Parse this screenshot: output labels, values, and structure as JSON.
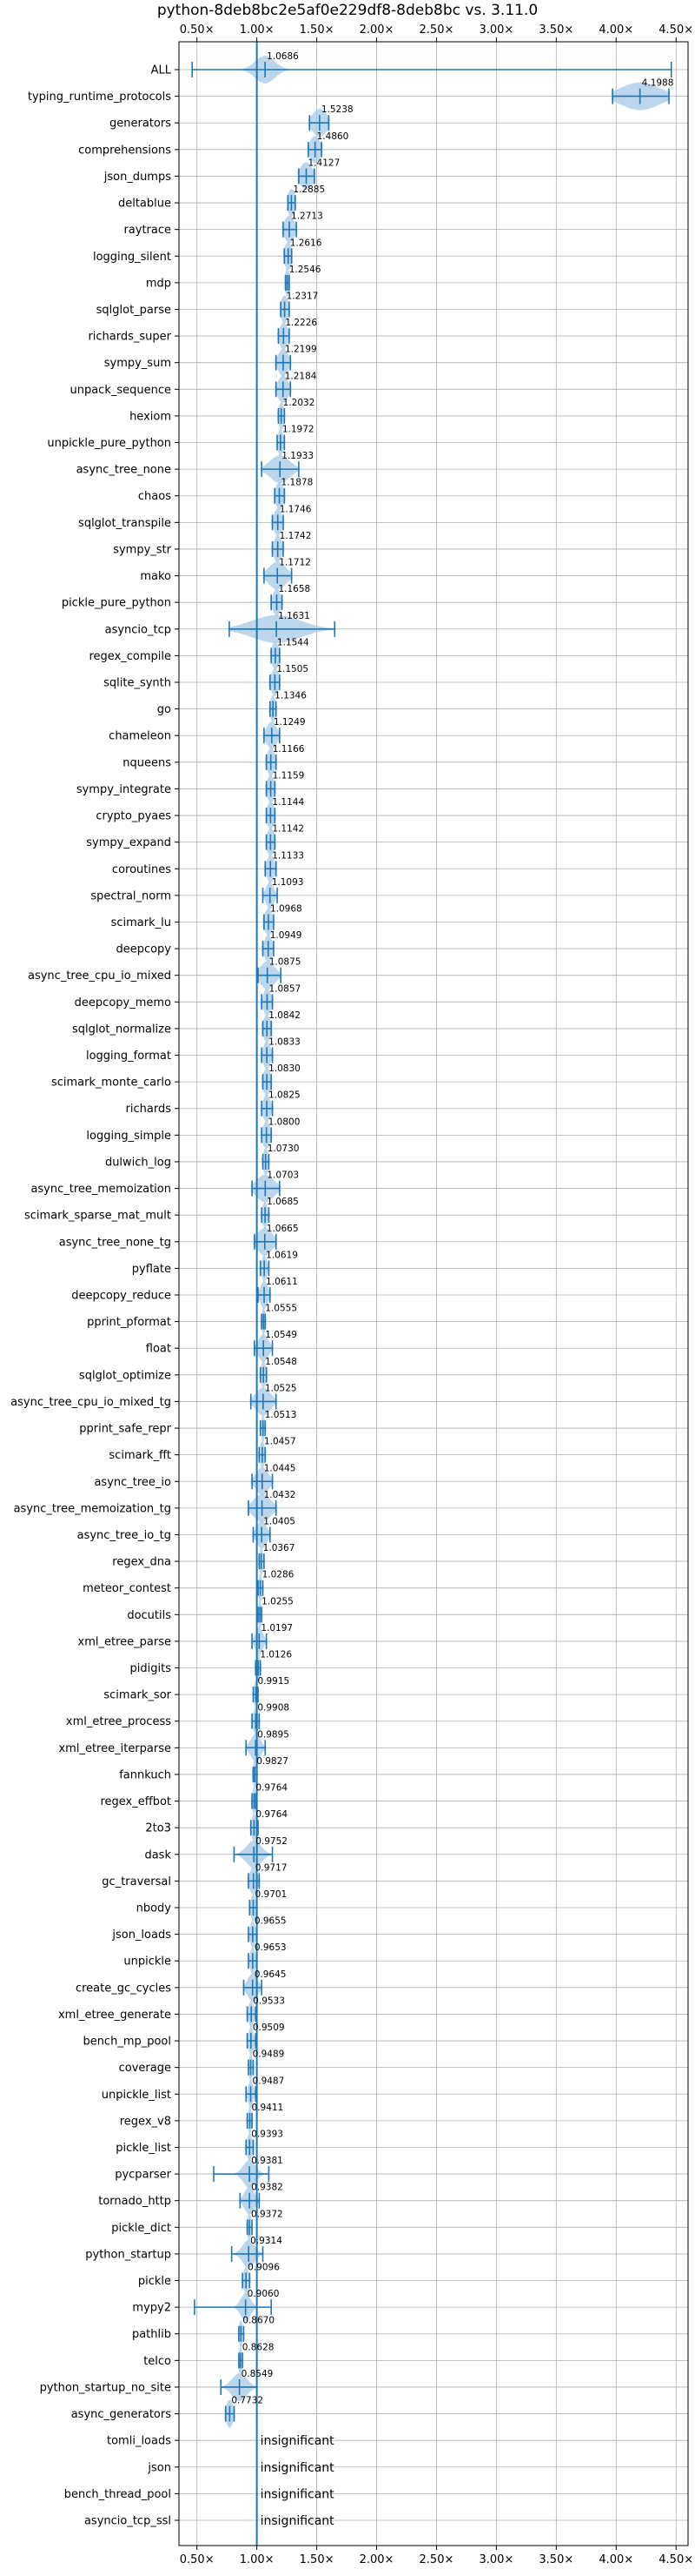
{
  "chart_data": {
    "type": "violin",
    "title": "python-8deb8bc2e5af0e229df8-8deb8bc vs. 3.11.0",
    "xlabel": "",
    "ylabel": "",
    "xlim": [
      0.35,
      4.6
    ],
    "x_ticks": [
      0.5,
      1.0,
      1.5,
      2.0,
      2.5,
      3.0,
      3.5,
      4.0,
      4.5
    ],
    "x_tick_labels": [
      "0.50×",
      "1.00×",
      "1.50×",
      "2.00×",
      "2.50×",
      "3.00×",
      "3.50×",
      "4.00×",
      "4.50×"
    ],
    "reference_line": 1.0,
    "grid": true,
    "colors": {
      "violin": "#a6c8e6",
      "marker": "#1f77b4",
      "reference": "#1f77b4",
      "grid": "#b0b0b0"
    },
    "benchmarks": [
      {
        "name": "ALL",
        "median": 1.0686,
        "label": "1.0686",
        "min": 0.46,
        "max": 4.46,
        "spread": 0.08
      },
      {
        "name": "typing_runtime_protocols",
        "median": 4.1988,
        "label": "4.1988",
        "min": 3.97,
        "max": 4.44,
        "spread": 0.16
      },
      {
        "name": "generators",
        "median": 1.5238,
        "label": "1.5238",
        "min": 1.44,
        "max": 1.6,
        "spread": 0.06
      },
      {
        "name": "comprehensions",
        "median": 1.486,
        "label": "1.4860",
        "min": 1.43,
        "max": 1.54,
        "spread": 0.04
      },
      {
        "name": "json_dumps",
        "median": 1.4127,
        "label": "1.4127",
        "min": 1.35,
        "max": 1.48,
        "spread": 0.05
      },
      {
        "name": "deltablue",
        "median": 1.2885,
        "label": "1.2885",
        "min": 1.26,
        "max": 1.32,
        "spread": 0.03
      },
      {
        "name": "raytrace",
        "median": 1.2713,
        "label": "1.2713",
        "min": 1.22,
        "max": 1.33,
        "spread": 0.04
      },
      {
        "name": "logging_silent",
        "median": 1.2616,
        "label": "1.2616",
        "min": 1.23,
        "max": 1.29,
        "spread": 0.03
      },
      {
        "name": "mdp",
        "median": 1.2546,
        "label": "1.2546",
        "min": 1.24,
        "max": 1.27,
        "spread": 0.02
      },
      {
        "name": "sqlglot_parse",
        "median": 1.2317,
        "label": "1.2317",
        "min": 1.2,
        "max": 1.27,
        "spread": 0.03
      },
      {
        "name": "richards_super",
        "median": 1.2226,
        "label": "1.2226",
        "min": 1.18,
        "max": 1.27,
        "spread": 0.03
      },
      {
        "name": "sympy_sum",
        "median": 1.2199,
        "label": "1.2199",
        "min": 1.16,
        "max": 1.28,
        "spread": 0.04
      },
      {
        "name": "unpack_sequence",
        "median": 1.2184,
        "label": "1.2184",
        "min": 1.16,
        "max": 1.28,
        "spread": 0.04
      },
      {
        "name": "hexiom",
        "median": 1.2032,
        "label": "1.2032",
        "min": 1.18,
        "max": 1.23,
        "spread": 0.02
      },
      {
        "name": "unpickle_pure_python",
        "median": 1.1972,
        "label": "1.1972",
        "min": 1.17,
        "max": 1.23,
        "spread": 0.02
      },
      {
        "name": "async_tree_none",
        "median": 1.1933,
        "label": "1.1933",
        "min": 1.04,
        "max": 1.35,
        "spread": 0.08
      },
      {
        "name": "chaos",
        "median": 1.1878,
        "label": "1.1878",
        "min": 1.15,
        "max": 1.23,
        "spread": 0.03
      },
      {
        "name": "sqlglot_transpile",
        "median": 1.1746,
        "label": "1.1746",
        "min": 1.13,
        "max": 1.22,
        "spread": 0.03
      },
      {
        "name": "sympy_str",
        "median": 1.1742,
        "label": "1.1742",
        "min": 1.13,
        "max": 1.22,
        "spread": 0.03
      },
      {
        "name": "mako",
        "median": 1.1712,
        "label": "1.1712",
        "min": 1.06,
        "max": 1.29,
        "spread": 0.07
      },
      {
        "name": "pickle_pure_python",
        "median": 1.1658,
        "label": "1.1658",
        "min": 1.12,
        "max": 1.21,
        "spread": 0.03
      },
      {
        "name": "asyncio_tcp",
        "median": 1.1631,
        "label": "1.1631",
        "min": 0.77,
        "max": 1.65,
        "spread": 0.2
      },
      {
        "name": "regex_compile",
        "median": 1.1544,
        "label": "1.1544",
        "min": 1.12,
        "max": 1.19,
        "spread": 0.03
      },
      {
        "name": "sqlite_synth",
        "median": 1.1505,
        "label": "1.1505",
        "min": 1.11,
        "max": 1.19,
        "spread": 0.03
      },
      {
        "name": "go",
        "median": 1.1346,
        "label": "1.1346",
        "min": 1.11,
        "max": 1.16,
        "spread": 0.02
      },
      {
        "name": "chameleon",
        "median": 1.1249,
        "label": "1.1249",
        "min": 1.06,
        "max": 1.19,
        "spread": 0.04
      },
      {
        "name": "nqueens",
        "median": 1.1166,
        "label": "1.1166",
        "min": 1.08,
        "max": 1.16,
        "spread": 0.03
      },
      {
        "name": "sympy_integrate",
        "median": 1.1159,
        "label": "1.1159",
        "min": 1.08,
        "max": 1.15,
        "spread": 0.03
      },
      {
        "name": "crypto_pyaes",
        "median": 1.1144,
        "label": "1.1144",
        "min": 1.08,
        "max": 1.15,
        "spread": 0.03
      },
      {
        "name": "sympy_expand",
        "median": 1.1142,
        "label": "1.1142",
        "min": 1.08,
        "max": 1.15,
        "spread": 0.03
      },
      {
        "name": "coroutines",
        "median": 1.1133,
        "label": "1.1133",
        "min": 1.07,
        "max": 1.16,
        "spread": 0.03
      },
      {
        "name": "spectral_norm",
        "median": 1.1093,
        "label": "1.1093",
        "min": 1.05,
        "max": 1.17,
        "spread": 0.03
      },
      {
        "name": "scimark_lu",
        "median": 1.0968,
        "label": "1.0968",
        "min": 1.06,
        "max": 1.14,
        "spread": 0.03
      },
      {
        "name": "deepcopy",
        "median": 1.0949,
        "label": "1.0949",
        "min": 1.05,
        "max": 1.14,
        "spread": 0.03
      },
      {
        "name": "async_tree_cpu_io_mixed",
        "median": 1.0875,
        "label": "1.0875",
        "min": 1.01,
        "max": 1.2,
        "spread": 0.06
      },
      {
        "name": "deepcopy_memo",
        "median": 1.0857,
        "label": "1.0857",
        "min": 1.04,
        "max": 1.13,
        "spread": 0.03
      },
      {
        "name": "sqlglot_normalize",
        "median": 1.0842,
        "label": "1.0842",
        "min": 1.05,
        "max": 1.12,
        "spread": 0.03
      },
      {
        "name": "logging_format",
        "median": 1.0833,
        "label": "1.0833",
        "min": 1.04,
        "max": 1.13,
        "spread": 0.03
      },
      {
        "name": "scimark_monte_carlo",
        "median": 1.083,
        "label": "1.0830",
        "min": 1.05,
        "max": 1.12,
        "spread": 0.03
      },
      {
        "name": "richards",
        "median": 1.0825,
        "label": "1.0825",
        "min": 1.04,
        "max": 1.13,
        "spread": 0.03
      },
      {
        "name": "logging_simple",
        "median": 1.08,
        "label": "1.0800",
        "min": 1.04,
        "max": 1.12,
        "spread": 0.03
      },
      {
        "name": "dulwich_log",
        "median": 1.073,
        "label": "1.0730",
        "min": 1.05,
        "max": 1.1,
        "spread": 0.02
      },
      {
        "name": "async_tree_memoization",
        "median": 1.0703,
        "label": "1.0703",
        "min": 0.96,
        "max": 1.19,
        "spread": 0.07
      },
      {
        "name": "scimark_sparse_mat_mult",
        "median": 1.0685,
        "label": "1.0685",
        "min": 1.04,
        "max": 1.1,
        "spread": 0.02
      },
      {
        "name": "async_tree_none_tg",
        "median": 1.0665,
        "label": "1.0665",
        "min": 0.98,
        "max": 1.16,
        "spread": 0.06
      },
      {
        "name": "pyflate",
        "median": 1.0619,
        "label": "1.0619",
        "min": 1.03,
        "max": 1.1,
        "spread": 0.02
      },
      {
        "name": "deepcopy_reduce",
        "median": 1.0611,
        "label": "1.0611",
        "min": 1.01,
        "max": 1.11,
        "spread": 0.03
      },
      {
        "name": "pprint_pformat",
        "median": 1.0555,
        "label": "1.0555",
        "min": 1.04,
        "max": 1.07,
        "spread": 0.015
      },
      {
        "name": "float",
        "median": 1.0549,
        "label": "1.0549",
        "min": 0.98,
        "max": 1.13,
        "spread": 0.04
      },
      {
        "name": "sqlglot_optimize",
        "median": 1.0548,
        "label": "1.0548",
        "min": 1.03,
        "max": 1.08,
        "spread": 0.02
      },
      {
        "name": "async_tree_cpu_io_mixed_tg",
        "median": 1.0525,
        "label": "1.0525",
        "min": 0.95,
        "max": 1.16,
        "spread": 0.06
      },
      {
        "name": "pprint_safe_repr",
        "median": 1.0513,
        "label": "1.0513",
        "min": 1.03,
        "max": 1.07,
        "spread": 0.015
      },
      {
        "name": "scimark_fft",
        "median": 1.0457,
        "label": "1.0457",
        "min": 1.02,
        "max": 1.07,
        "spread": 0.02
      },
      {
        "name": "async_tree_io",
        "median": 1.0445,
        "label": "1.0445",
        "min": 0.96,
        "max": 1.13,
        "spread": 0.05
      },
      {
        "name": "async_tree_memoization_tg",
        "median": 1.0432,
        "label": "1.0432",
        "min": 0.93,
        "max": 1.16,
        "spread": 0.07
      },
      {
        "name": "async_tree_io_tg",
        "median": 1.0405,
        "label": "1.0405",
        "min": 0.97,
        "max": 1.11,
        "spread": 0.04
      },
      {
        "name": "regex_dna",
        "median": 1.0367,
        "label": "1.0367",
        "min": 1.02,
        "max": 1.06,
        "spread": 0.015
      },
      {
        "name": "meteor_contest",
        "median": 1.0286,
        "label": "1.0286",
        "min": 1.01,
        "max": 1.05,
        "spread": 0.015
      },
      {
        "name": "docutils",
        "median": 1.0255,
        "label": "1.0255",
        "min": 1.01,
        "max": 1.04,
        "spread": 0.015
      },
      {
        "name": "xml_etree_parse",
        "median": 1.0197,
        "label": "1.0197",
        "min": 0.96,
        "max": 1.08,
        "spread": 0.03
      },
      {
        "name": "pidigits",
        "median": 1.0126,
        "label": "1.0126",
        "min": 0.99,
        "max": 1.03,
        "spread": 0.015
      },
      {
        "name": "scimark_sor",
        "median": 0.9915,
        "label": "0.9915",
        "min": 0.97,
        "max": 1.01,
        "spread": 0.015
      },
      {
        "name": "xml_etree_process",
        "median": 0.9908,
        "label": "0.9908",
        "min": 0.96,
        "max": 1.02,
        "spread": 0.02
      },
      {
        "name": "xml_etree_iterparse",
        "median": 0.9895,
        "label": "0.9895",
        "min": 0.91,
        "max": 1.07,
        "spread": 0.04
      },
      {
        "name": "fannkuch",
        "median": 0.9827,
        "label": "0.9827",
        "min": 0.97,
        "max": 1.0,
        "spread": 0.015
      },
      {
        "name": "regex_effbot",
        "median": 0.9764,
        "label": "0.9764",
        "min": 0.96,
        "max": 0.99,
        "spread": 0.015
      },
      {
        "name": "2to3",
        "median": 0.9764,
        "label": "0.9764",
        "min": 0.95,
        "max": 1.01,
        "spread": 0.02
      },
      {
        "name": "dask",
        "median": 0.9752,
        "label": "0.9752",
        "min": 0.81,
        "max": 1.13,
        "spread": 0.06
      },
      {
        "name": "gc_traversal",
        "median": 0.9717,
        "label": "0.9717",
        "min": 0.93,
        "max": 1.02,
        "spread": 0.03
      },
      {
        "name": "nbody",
        "median": 0.9701,
        "label": "0.9701",
        "min": 0.94,
        "max": 1.0,
        "spread": 0.02
      },
      {
        "name": "json_loads",
        "median": 0.9655,
        "label": "0.9655",
        "min": 0.93,
        "max": 1.0,
        "spread": 0.02
      },
      {
        "name": "unpickle",
        "median": 0.9653,
        "label": "0.9653",
        "min": 0.93,
        "max": 1.0,
        "spread": 0.02
      },
      {
        "name": "create_gc_cycles",
        "median": 0.9645,
        "label": "0.9645",
        "min": 0.89,
        "max": 1.04,
        "spread": 0.04
      },
      {
        "name": "xml_etree_generate",
        "median": 0.9533,
        "label": "0.9533",
        "min": 0.92,
        "max": 0.99,
        "spread": 0.02
      },
      {
        "name": "bench_mp_pool",
        "median": 0.9509,
        "label": "0.9509",
        "min": 0.92,
        "max": 0.99,
        "spread": 0.02
      },
      {
        "name": "coverage",
        "median": 0.9489,
        "label": "0.9489",
        "min": 0.93,
        "max": 0.97,
        "spread": 0.015
      },
      {
        "name": "unpickle_list",
        "median": 0.9487,
        "label": "0.9487",
        "min": 0.91,
        "max": 0.99,
        "spread": 0.02
      },
      {
        "name": "regex_v8",
        "median": 0.9411,
        "label": "0.9411",
        "min": 0.92,
        "max": 0.96,
        "spread": 0.015
      },
      {
        "name": "pickle_list",
        "median": 0.9393,
        "label": "0.9393",
        "min": 0.91,
        "max": 0.97,
        "spread": 0.02
      },
      {
        "name": "pycparser",
        "median": 0.9381,
        "label": "0.9381",
        "min": 0.64,
        "max": 1.1,
        "spread": 0.05
      },
      {
        "name": "tornado_http",
        "median": 0.9382,
        "label": "0.9382",
        "min": 0.86,
        "max": 1.02,
        "spread": 0.04
      },
      {
        "name": "pickle_dict",
        "median": 0.9372,
        "label": "0.9372",
        "min": 0.92,
        "max": 0.96,
        "spread": 0.015
      },
      {
        "name": "python_startup",
        "median": 0.9314,
        "label": "0.9314",
        "min": 0.79,
        "max": 1.05,
        "spread": 0.05
      },
      {
        "name": "pickle",
        "median": 0.9096,
        "label": "0.9096",
        "min": 0.88,
        "max": 0.94,
        "spread": 0.02
      },
      {
        "name": "mypy2",
        "median": 0.906,
        "label": "0.9060",
        "min": 0.48,
        "max": 1.12,
        "spread": 0.04
      },
      {
        "name": "pathlib",
        "median": 0.867,
        "label": "0.8670",
        "min": 0.85,
        "max": 0.89,
        "spread": 0.015
      },
      {
        "name": "telco",
        "median": 0.8628,
        "label": "0.8628",
        "min": 0.85,
        "max": 0.88,
        "spread": 0.015
      },
      {
        "name": "python_startup_no_site",
        "median": 0.8549,
        "label": "0.8549",
        "min": 0.7,
        "max": 1.0,
        "spread": 0.06
      },
      {
        "name": "async_generators",
        "median": 0.7732,
        "label": "0.7732",
        "min": 0.74,
        "max": 0.81,
        "spread": 0.03
      },
      {
        "name": "tomli_loads",
        "median": null,
        "label": "insignificant"
      },
      {
        "name": "json",
        "median": null,
        "label": "insignificant"
      },
      {
        "name": "bench_thread_pool",
        "median": null,
        "label": "insignificant"
      },
      {
        "name": "asyncio_tcp_ssl",
        "median": null,
        "label": "insignificant"
      }
    ]
  }
}
